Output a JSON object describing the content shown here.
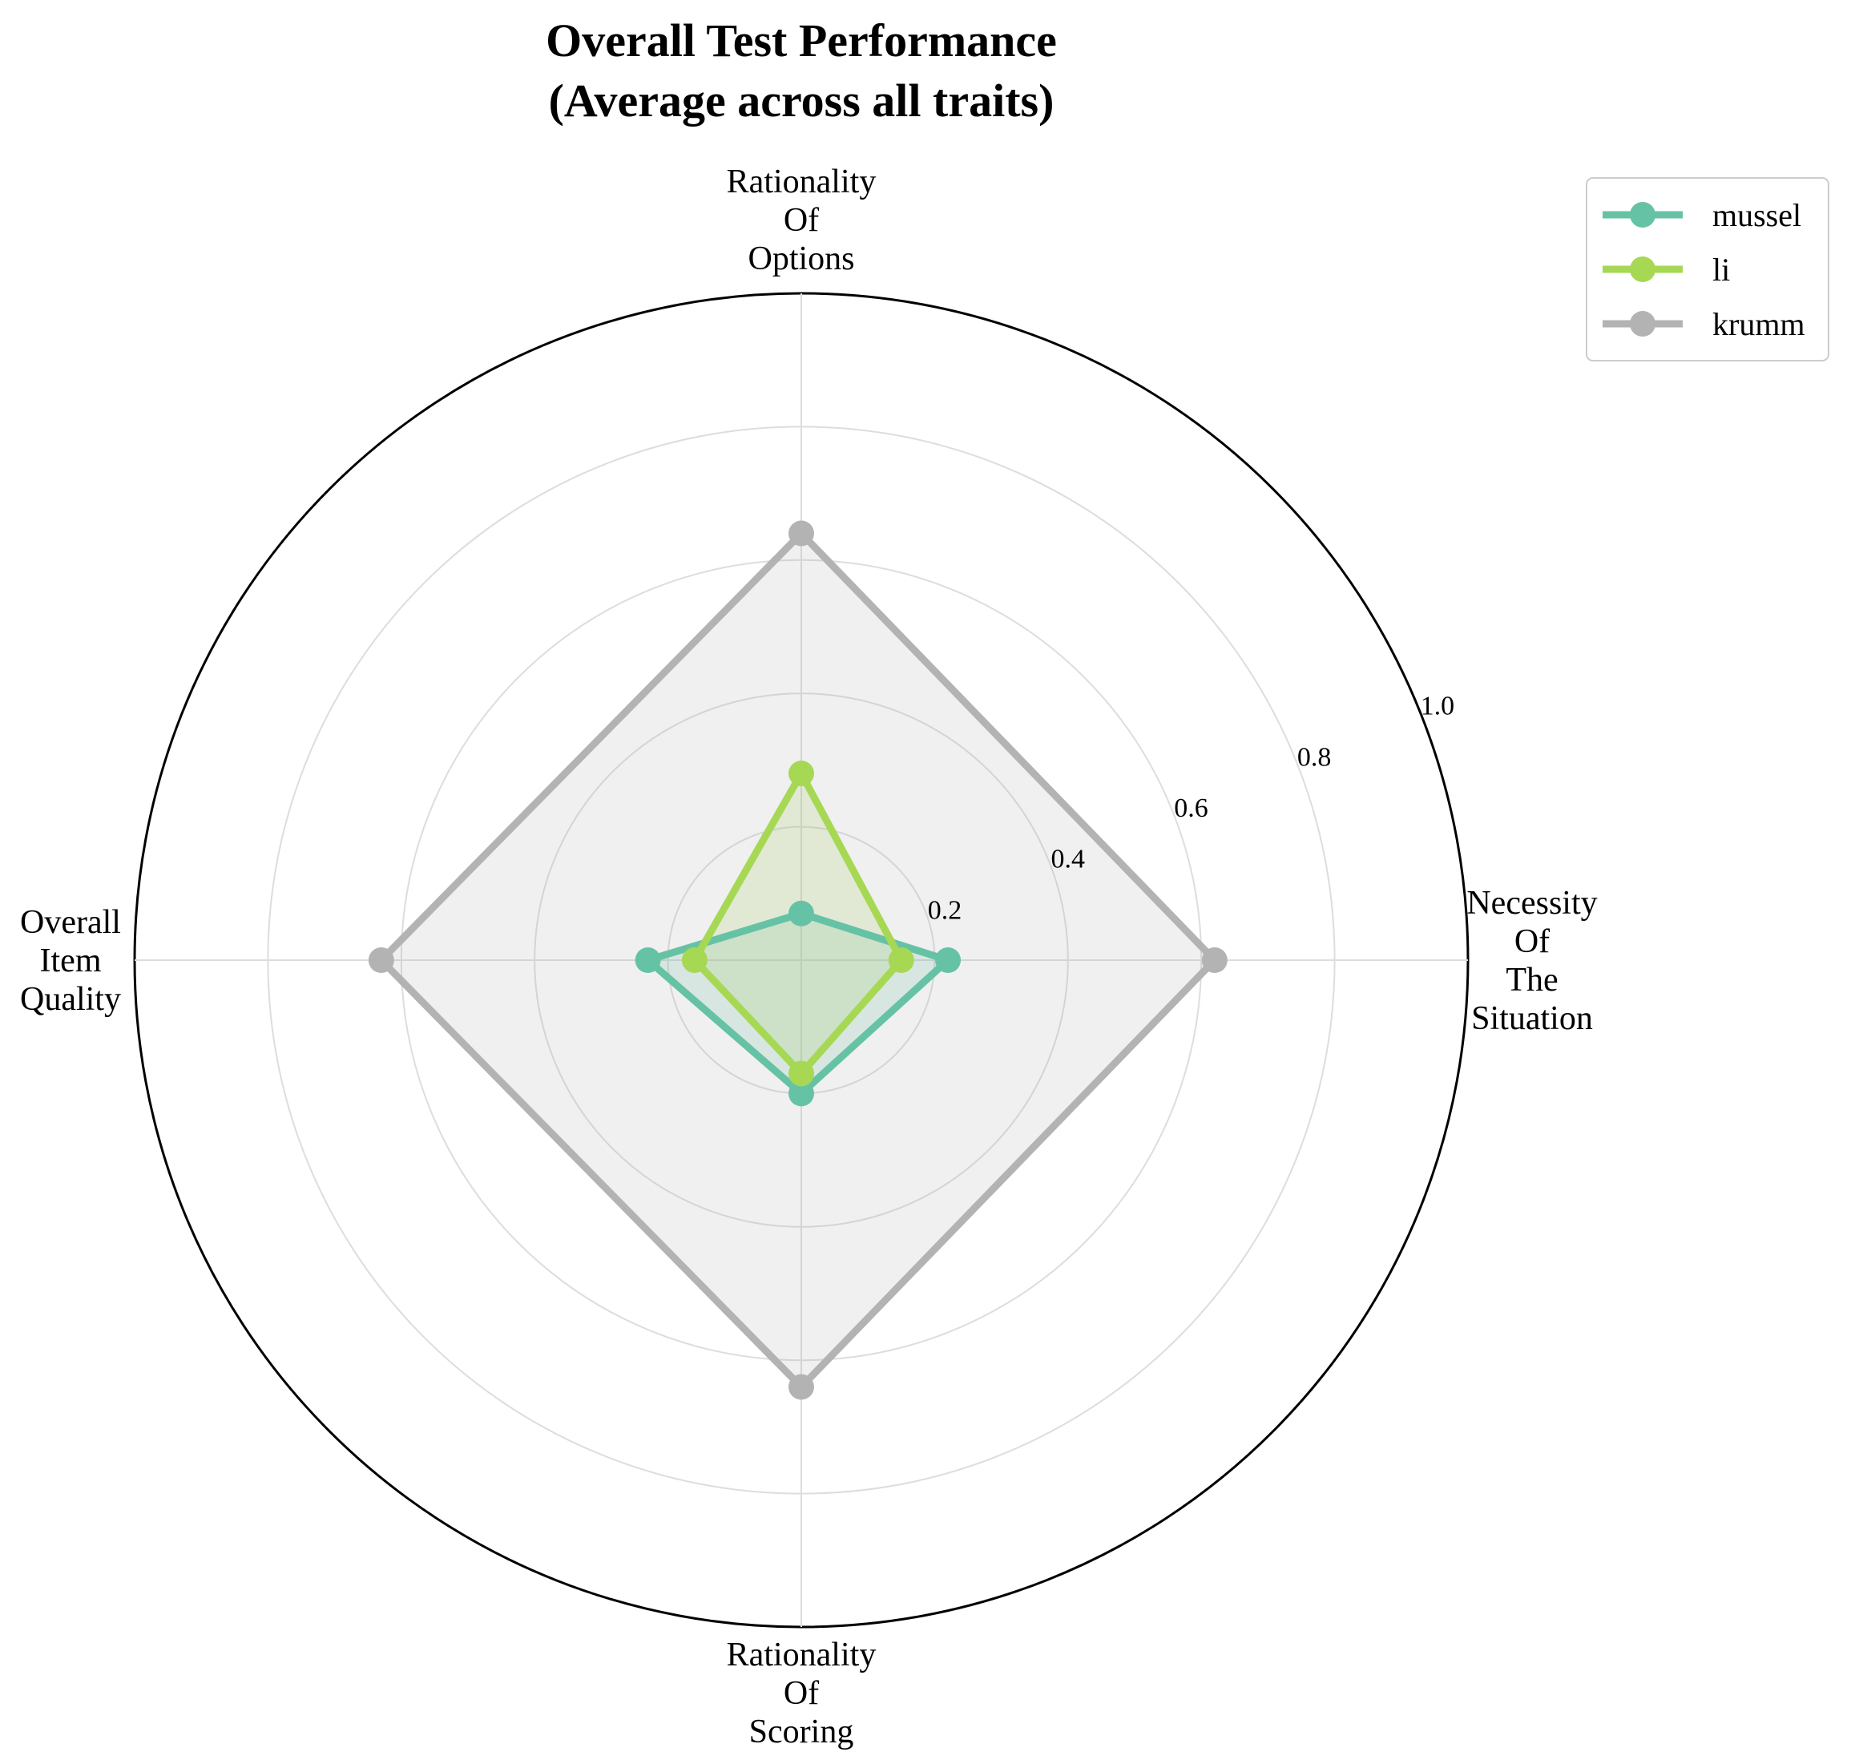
{
  "chart_data": {
    "type": "radar",
    "title_lines": [
      "Overall Test Performance",
      "(Average across all traits)"
    ],
    "axes": [
      {
        "key": "necessity",
        "lines": [
          "Necessity",
          "Of",
          "The",
          "Situation"
        ]
      },
      {
        "key": "options",
        "lines": [
          "Rationality",
          "Of",
          "Options"
        ]
      },
      {
        "key": "quality",
        "lines": [
          "Overall",
          "Item",
          "Quality"
        ]
      },
      {
        "key": "scoring",
        "lines": [
          "Rationality",
          "Of",
          "Scoring"
        ]
      }
    ],
    "rlim": [
      0,
      1.0
    ],
    "rticks": [
      0.2,
      0.4,
      0.6,
      0.8,
      1.0
    ],
    "rtick_labels": [
      "0.2",
      "0.4",
      "0.6",
      "0.8",
      "1.0"
    ],
    "grid": true,
    "legend_position": "upper-right, outside plot",
    "series": [
      {
        "name": "mussel",
        "color": "#66c2a5",
        "values": [
          0.22,
          0.07,
          0.23,
          0.2
        ]
      },
      {
        "name": "li",
        "color": "#a6d854",
        "values": [
          0.15,
          0.28,
          0.16,
          0.17
        ]
      },
      {
        "name": "krumm",
        "color": "#b3b3b3",
        "values": [
          0.62,
          0.64,
          0.63,
          0.64
        ]
      }
    ]
  }
}
